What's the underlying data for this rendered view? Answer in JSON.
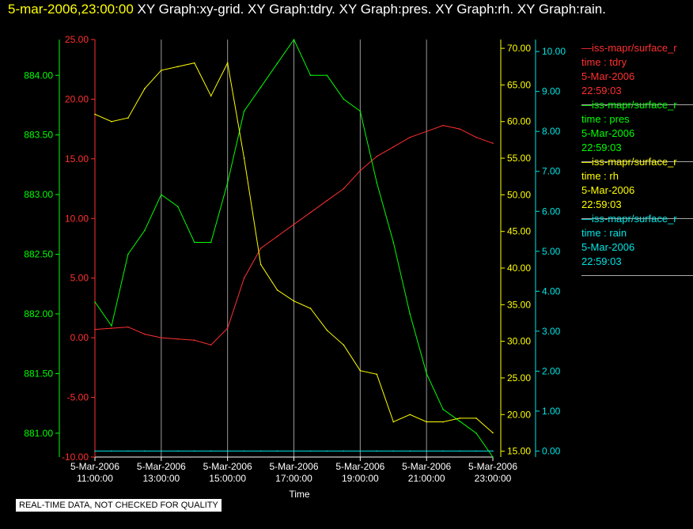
{
  "header": {
    "date": "5-mar-2006,23:00:00",
    "titles": "XY Graph:xy-grid.  XY Graph:tdry.  XY Graph:pres.  XY Graph:rh.  XY Graph:rain."
  },
  "notice": "REAL-TIME DATA, NOT CHECKED FOR QUALITY",
  "legend": [
    {
      "color": "#ff3030",
      "name": "—iss-mapr/surface_r",
      "l1": "time : tdry",
      "l2": "5-Mar-2006",
      "l3": "22:59:03"
    },
    {
      "color": "#00ff00",
      "name": "—iss-mapr/surface_r",
      "l1": "time : pres",
      "l2": "5-Mar-2006",
      "l3": "22:59:03"
    },
    {
      "color": "#ffff00",
      "name": "—iss-mapr/surface_r",
      "l1": "time : rh",
      "l2": "5-Mar-2006",
      "l3": "22:59:03"
    },
    {
      "color": "#00e5e5",
      "name": "—iss-mapr/surface_r",
      "l1": "time : rain",
      "l2": "5-Mar-2006",
      "l3": "22:59:03"
    }
  ],
  "chart_data": {
    "type": "line",
    "xlabel": "Time",
    "x_ticks": [
      {
        "d": "5-Mar-2006",
        "t": "11:00:00"
      },
      {
        "d": "5-Mar-2006",
        "t": "13:00:00"
      },
      {
        "d": "5-Mar-2006",
        "t": "15:00:00"
      },
      {
        "d": "5-Mar-2006",
        "t": "17:00:00"
      },
      {
        "d": "5-Mar-2006",
        "t": "19:00:00"
      },
      {
        "d": "5-Mar-2006",
        "t": "21:00:00"
      },
      {
        "d": "5-Mar-2006",
        "t": "23:00:00"
      }
    ],
    "x": [
      "11:00",
      "11:30",
      "12:00",
      "12:30",
      "13:00",
      "13:30",
      "14:00",
      "14:30",
      "15:00",
      "15:30",
      "16:00",
      "16:30",
      "17:00",
      "17:30",
      "18:00",
      "18:30",
      "19:00",
      "19:30",
      "20:00",
      "20:30",
      "21:00",
      "21:30",
      "22:00",
      "22:30",
      "23:00"
    ],
    "grid": true,
    "axes": [
      {
        "id": "pres",
        "color": "#00ff00",
        "min": 880.8,
        "max": 884.3,
        "ticks": [
          "881.00",
          "881.50",
          "882.00",
          "882.50",
          "883.00",
          "883.50",
          "884.00"
        ],
        "tickvals": [
          881,
          881.5,
          882,
          882.5,
          883,
          883.5,
          884
        ]
      },
      {
        "id": "tdry",
        "color": "#ff3030",
        "min": -10,
        "max": 25,
        "ticks": [
          "-10.00",
          "-5.00",
          "0.00",
          "5.00",
          "10.00",
          "15.00",
          "20.00",
          "25.00"
        ],
        "tickvals": [
          -10,
          -5,
          0,
          5,
          10,
          15,
          20,
          25
        ]
      },
      {
        "id": "rh",
        "color": "#ffff00",
        "min": 14.2,
        "max": 71.2,
        "ticks": [
          "15.00",
          "20.00",
          "25.00",
          "30.00",
          "35.00",
          "40.00",
          "45.00",
          "50.00",
          "55.00",
          "60.00",
          "65.00",
          "70.00"
        ],
        "tickvals": [
          15,
          20,
          25,
          30,
          35,
          40,
          45,
          50,
          55,
          60,
          65,
          70
        ]
      },
      {
        "id": "rain",
        "color": "#00e5e5",
        "min": -0.15,
        "max": 10.3,
        "ticks": [
          "0.00",
          "1.00",
          "2.00",
          "3.00",
          "4.00",
          "5.00",
          "6.00",
          "7.00",
          "8.00",
          "9.00",
          "10.00"
        ],
        "tickvals": [
          0,
          1,
          2,
          3,
          4,
          5,
          6,
          7,
          8,
          9,
          10
        ]
      }
    ],
    "series": [
      {
        "id": "tdry",
        "axis": "tdry",
        "color": "#ff3030",
        "values": [
          0.7,
          0.8,
          0.9,
          0.3,
          0.0,
          -0.1,
          -0.2,
          -0.6,
          0.8,
          5.0,
          7.5,
          8.5,
          9.5,
          10.5,
          11.5,
          12.5,
          14.0,
          15.2,
          16.0,
          16.8,
          17.3,
          17.8,
          17.5,
          16.8,
          16.3
        ]
      },
      {
        "id": "pres",
        "axis": "pres",
        "color": "#00ff00",
        "values": [
          882.1,
          881.9,
          882.5,
          882.7,
          883.0,
          882.9,
          882.6,
          882.6,
          883.1,
          883.7,
          883.9,
          884.1,
          884.3,
          884.0,
          884.0,
          883.8,
          883.7,
          883.1,
          882.6,
          882.0,
          881.5,
          881.2,
          881.1,
          881.0,
          880.8
        ]
      },
      {
        "id": "rh",
        "axis": "rh",
        "color": "#ffff00",
        "values": [
          61.0,
          60.0,
          60.5,
          64.5,
          67.0,
          67.5,
          68.0,
          63.5,
          68.0,
          55.0,
          40.5,
          37.0,
          35.5,
          34.5,
          31.5,
          29.5,
          26.0,
          25.5,
          19.0,
          20.0,
          19.0,
          19.0,
          19.5,
          19.5,
          17.5
        ]
      },
      {
        "id": "rain",
        "axis": "rain",
        "color": "#00e5e5",
        "values": [
          0,
          0,
          0,
          0,
          0,
          0,
          0,
          0,
          0,
          0,
          0,
          0,
          0,
          0,
          0,
          0,
          0,
          0,
          0,
          0,
          0,
          0,
          0,
          0,
          0
        ]
      }
    ]
  }
}
